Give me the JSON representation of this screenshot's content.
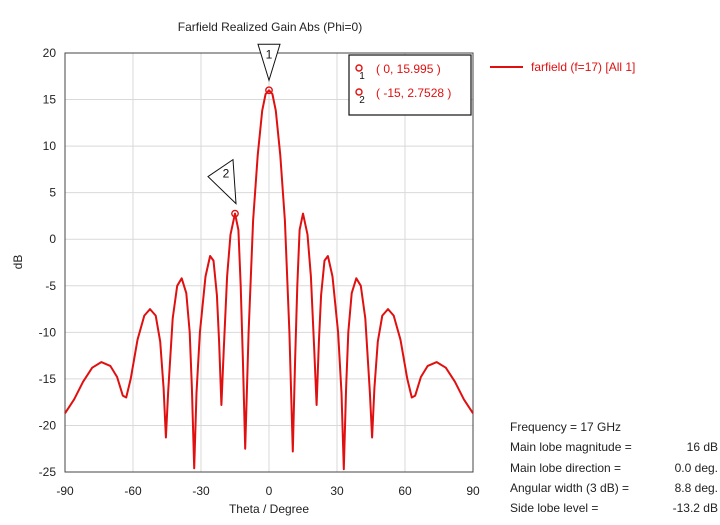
{
  "chart_data": {
    "type": "line",
    "title": "Farfield Realized Gain Abs (Phi=0)",
    "xlabel": "Theta / Degree",
    "ylabel": "dB",
    "xlim": [
      -90,
      90
    ],
    "ylim": [
      -25,
      20
    ],
    "xticks": [
      -90,
      -60,
      -30,
      0,
      30,
      60,
      90
    ],
    "yticks": [
      -25,
      -20,
      -15,
      -10,
      -5,
      0,
      5,
      10,
      15,
      20
    ],
    "grid": true,
    "legend_position": "right",
    "series": [
      {
        "name": "farfield (f=17) [All 1]",
        "color": "#e01010",
        "points": [
          [
            -90,
            -18.7
          ],
          [
            -86,
            -17.2
          ],
          [
            -82,
            -15.3
          ],
          [
            -78,
            -13.8
          ],
          [
            -74,
            -13.2
          ],
          [
            -70,
            -13.6
          ],
          [
            -67,
            -14.8
          ],
          [
            -64.5,
            -16.8
          ],
          [
            -63,
            -17.0
          ],
          [
            -61,
            -15.0
          ],
          [
            -58,
            -10.8
          ],
          [
            -55,
            -8.2
          ],
          [
            -52.5,
            -7.5
          ],
          [
            -50,
            -8.2
          ],
          [
            -48,
            -11.0
          ],
          [
            -46.5,
            -16.0
          ],
          [
            -45.5,
            -21.3
          ],
          [
            -44.5,
            -16.5
          ],
          [
            -42.5,
            -8.5
          ],
          [
            -40.5,
            -5.0
          ],
          [
            -38.5,
            -4.2
          ],
          [
            -36.5,
            -5.8
          ],
          [
            -35,
            -10.0
          ],
          [
            -34,
            -16.0
          ],
          [
            -33,
            -24.6
          ],
          [
            -32,
            -16.5
          ],
          [
            -30.5,
            -10.0
          ],
          [
            -28,
            -4.0
          ],
          [
            -26,
            -1.8
          ],
          [
            -24.5,
            -2.3
          ],
          [
            -23,
            -6.0
          ],
          [
            -22,
            -11.0
          ],
          [
            -21,
            -17.8
          ],
          [
            -20,
            -12.0
          ],
          [
            -18.5,
            -4.0
          ],
          [
            -17,
            0.5
          ],
          [
            -15,
            2.75
          ],
          [
            -13.5,
            1.0
          ],
          [
            -12.5,
            -5.0
          ],
          [
            -11.5,
            -13.0
          ],
          [
            -10.5,
            -22.5
          ],
          [
            -9,
            -10.0
          ],
          [
            -7,
            2.0
          ],
          [
            -5,
            9.0
          ],
          [
            -3,
            13.8
          ],
          [
            -1.5,
            15.6
          ],
          [
            0,
            15.995
          ],
          [
            1.5,
            15.6
          ],
          [
            3,
            13.8
          ],
          [
            5,
            9.0
          ],
          [
            7,
            2.0
          ],
          [
            9,
            -10.0
          ],
          [
            10.5,
            -22.8
          ],
          [
            11.5,
            -13.0
          ],
          [
            12.5,
            -5.0
          ],
          [
            13.5,
            1.0
          ],
          [
            15,
            2.75
          ],
          [
            17,
            0.5
          ],
          [
            18.5,
            -4.0
          ],
          [
            20,
            -12.0
          ],
          [
            21,
            -17.8
          ],
          [
            22,
            -11.0
          ],
          [
            23,
            -6.0
          ],
          [
            24.5,
            -2.3
          ],
          [
            26,
            -1.8
          ],
          [
            28,
            -4.0
          ],
          [
            30.5,
            -10.0
          ],
          [
            32,
            -16.5
          ],
          [
            33,
            -24.7
          ],
          [
            34,
            -16.0
          ],
          [
            35,
            -10.0
          ],
          [
            36.5,
            -5.8
          ],
          [
            38.5,
            -4.2
          ],
          [
            40.5,
            -5.0
          ],
          [
            42.5,
            -8.5
          ],
          [
            44.5,
            -16.5
          ],
          [
            45.5,
            -21.3
          ],
          [
            46.5,
            -16.0
          ],
          [
            48,
            -11.0
          ],
          [
            50,
            -8.2
          ],
          [
            52.5,
            -7.5
          ],
          [
            55,
            -8.2
          ],
          [
            58,
            -10.8
          ],
          [
            61,
            -15.0
          ],
          [
            63,
            -17.0
          ],
          [
            64.5,
            -16.8
          ],
          [
            67,
            -14.8
          ],
          [
            70,
            -13.6
          ],
          [
            74,
            -13.2
          ],
          [
            78,
            -13.8
          ],
          [
            82,
            -15.3
          ],
          [
            86,
            -17.2
          ],
          [
            90,
            -18.7
          ]
        ]
      }
    ],
    "markers": [
      {
        "id": "1",
        "x": 0,
        "y": 15.995,
        "label": "( 0, 15.995 )"
      },
      {
        "id": "2",
        "x": -15,
        "y": 2.75,
        "label": "( -15, 2.7528 )"
      }
    ]
  },
  "info": [
    {
      "label": "Frequency = 17 GHz",
      "value": ""
    },
    {
      "label": "Main lobe magnitude =",
      "value": "16 dB"
    },
    {
      "label": "Main lobe direction =",
      "value": "0.0 deg."
    },
    {
      "label": "Angular width (3 dB) =",
      "value": "8.8 deg."
    },
    {
      "label": "Side lobe level =",
      "value": "-13.2 dB"
    }
  ]
}
